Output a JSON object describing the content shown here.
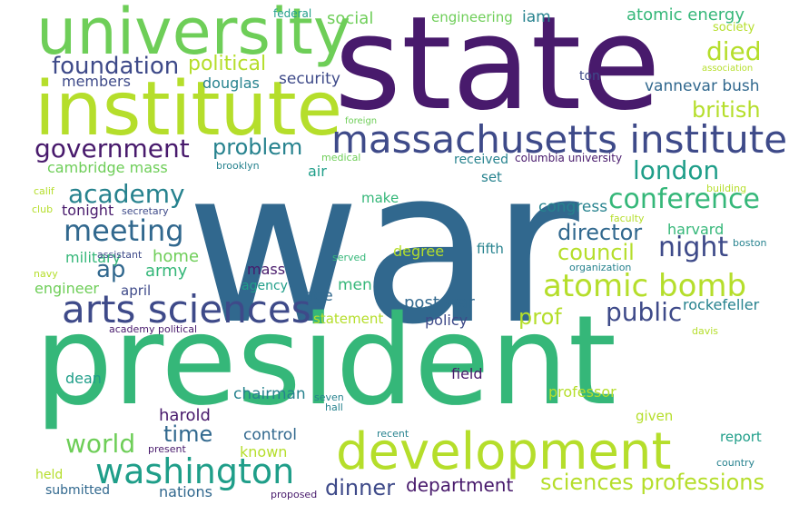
{
  "palette": {
    "deep_purple": "#481a6c",
    "indigo": "#3e4a89",
    "blue": "#31688e",
    "teal": "#26828e",
    "green_teal": "#1f9e89",
    "green": "#35b779",
    "light_green": "#6ece58",
    "lime": "#b5de2b",
    "yellow": "#e0dd2c"
  },
  "words": [
    "war",
    "state",
    "president",
    "institute",
    "university",
    "development",
    "massachusetts institute",
    "arts sciences",
    "washington",
    "atomic bomb",
    "conference",
    "government",
    "meeting",
    "foundation",
    "academy",
    "sciences professions",
    "night",
    "london",
    "died",
    "public",
    "world",
    "director",
    "council",
    "british",
    "problem",
    "political",
    "dinner",
    "prof",
    "ap",
    "time",
    "department",
    "atomic energy",
    "post war",
    "social",
    "army",
    "home",
    "engineering",
    "iam",
    "vannevar bush",
    "cambridge mass",
    "members",
    "douglas",
    "security",
    "tonight",
    "military",
    "age",
    "men",
    "nations",
    "control",
    "chairman",
    "harold",
    "mass",
    "congress",
    "harvard",
    "policy",
    "make",
    "rockefeller",
    "degree",
    "fifth",
    "air",
    "set",
    "received",
    "field",
    "professor",
    "statement",
    "engineer",
    "april",
    "agency",
    "known",
    "given",
    "report",
    "dean",
    "submitted",
    "held",
    "columbia university",
    "society",
    "association",
    "ton",
    "federal",
    "foreign",
    "medical",
    "brooklyn",
    "calif",
    "club",
    "secretary",
    "assistant",
    "navy",
    "served",
    "faculty",
    "boston",
    "organization",
    "building",
    "academy political",
    "davis",
    "seven",
    "hall",
    "recent",
    "present",
    "country",
    "proposed"
  ]
}
